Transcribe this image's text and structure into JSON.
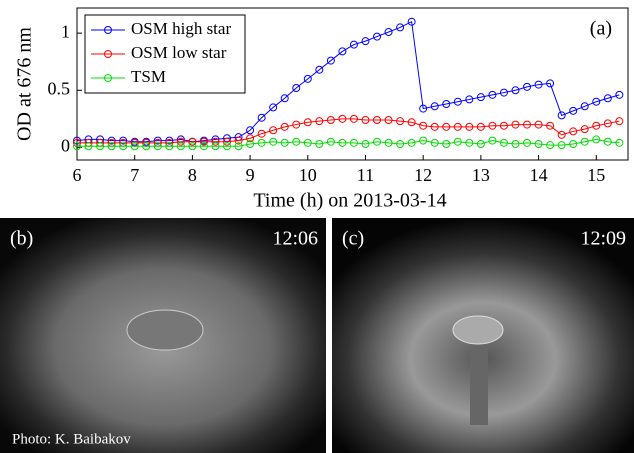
{
  "chart_data": {
    "type": "line",
    "annotation": "(a)",
    "xlabel": "Time (h) on 2013-03-14",
    "ylabel": "OD at 676 nm",
    "xlim": [
      6,
      15.55
    ],
    "ylim": [
      -0.11,
      1.22
    ],
    "xticks": [
      6,
      7,
      8,
      9,
      10,
      11,
      12,
      13,
      14,
      15
    ],
    "yticks": [
      0,
      0.5,
      1
    ],
    "legend": "upper left",
    "x": [
      6.0,
      6.2,
      6.4,
      6.6,
      6.8,
      7.0,
      7.2,
      7.4,
      7.6,
      7.8,
      8.0,
      8.2,
      8.4,
      8.6,
      8.8,
      9.0,
      9.2,
      9.4,
      9.6,
      9.8,
      10.0,
      10.2,
      10.4,
      10.6,
      10.8,
      11.0,
      11.2,
      11.4,
      11.6,
      11.8,
      12.0,
      12.2,
      12.4,
      12.6,
      12.8,
      13.0,
      13.2,
      13.4,
      13.6,
      13.8,
      14.0,
      14.2,
      14.4,
      14.6,
      14.8,
      15.0,
      15.2,
      15.4
    ],
    "series": [
      {
        "name": "OSM high star",
        "color": "#0000ff",
        "values": [
          0.06,
          0.07,
          0.07,
          0.06,
          0.06,
          0.05,
          0.05,
          0.06,
          0.06,
          0.07,
          0.05,
          0.06,
          0.07,
          0.08,
          0.09,
          0.15,
          0.26,
          0.35,
          0.43,
          0.52,
          0.6,
          0.68,
          0.76,
          0.84,
          0.9,
          0.93,
          0.97,
          1.01,
          1.05,
          1.1,
          0.34,
          0.36,
          0.38,
          0.4,
          0.42,
          0.44,
          0.46,
          0.48,
          0.5,
          0.53,
          0.55,
          0.56,
          0.28,
          0.32,
          0.36,
          0.4,
          0.43,
          0.46
        ]
      },
      {
        "name": "OSM low star",
        "color": "#ff0000",
        "values": [
          0.04,
          0.04,
          0.04,
          0.04,
          0.04,
          0.04,
          0.04,
          0.04,
          0.04,
          0.05,
          0.05,
          0.05,
          0.05,
          0.05,
          0.06,
          0.08,
          0.12,
          0.15,
          0.18,
          0.2,
          0.22,
          0.23,
          0.24,
          0.25,
          0.25,
          0.24,
          0.24,
          0.24,
          0.23,
          0.22,
          0.19,
          0.18,
          0.18,
          0.18,
          0.18,
          0.18,
          0.19,
          0.19,
          0.2,
          0.2,
          0.2,
          0.19,
          0.11,
          0.14,
          0.16,
          0.19,
          0.21,
          0.23
        ]
      },
      {
        "name": "TSM",
        "color": "#00dd00",
        "values": [
          0.01,
          0.01,
          0.01,
          0.01,
          0.01,
          0.01,
          0.01,
          0.01,
          0.01,
          0.01,
          0.01,
          0.01,
          0.01,
          0.01,
          0.01,
          0.03,
          0.04,
          0.05,
          0.04,
          0.05,
          0.04,
          0.03,
          0.05,
          0.04,
          0.04,
          0.03,
          0.05,
          0.04,
          0.03,
          0.04,
          0.06,
          0.04,
          0.03,
          0.05,
          0.04,
          0.03,
          0.06,
          0.04,
          0.03,
          0.04,
          0.03,
          0.02,
          0.02,
          0.03,
          0.05,
          0.07,
          0.05,
          0.04
        ]
      }
    ]
  },
  "photos": [
    {
      "label": "(b)",
      "time": "12:06",
      "credit": "Photo: K. Baibakov"
    },
    {
      "label": "(c)",
      "time": "12:09"
    }
  ]
}
